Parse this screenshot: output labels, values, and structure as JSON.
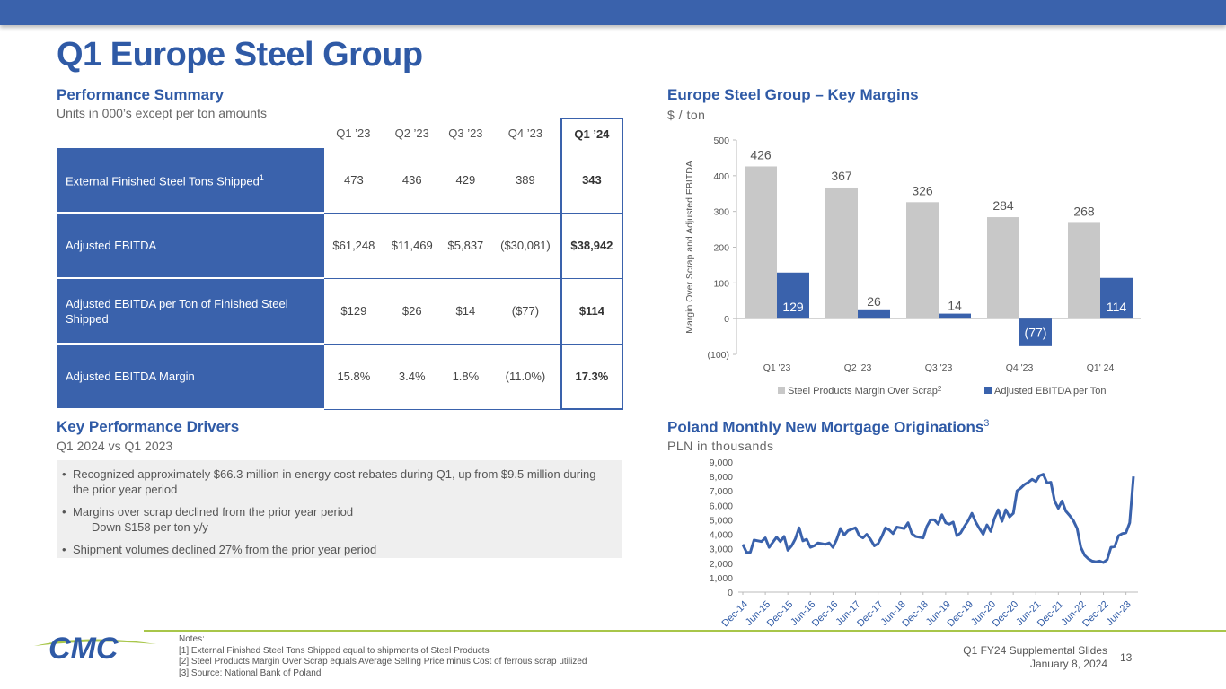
{
  "page": {
    "title": "Q1 Europe Steel Group",
    "page_number": "13",
    "footer_line1": "Q1 FY24 Supplemental Slides",
    "footer_line2": "January 8, 2024",
    "logo_text": "CMC"
  },
  "performance": {
    "heading": "Performance Summary",
    "subheading": "Units in 000’s except per ton amounts",
    "columns": [
      "Q1 ’23",
      "Q2 ’23",
      "Q3 ’23",
      "Q4 ’23",
      "Q1 ’24"
    ],
    "rows": [
      {
        "label": "External Finished Steel Tons Shipped",
        "sup": "1",
        "values": [
          "473",
          "436",
          "429",
          "389",
          "343"
        ]
      },
      {
        "label": "Adjusted EBITDA",
        "sup": "",
        "values": [
          "$61,248",
          "$11,469",
          "$5,837",
          "($30,081)",
          "$38,942"
        ]
      },
      {
        "label": "Adjusted EBITDA per Ton of Finished Steel Shipped",
        "sup": "",
        "values": [
          "$129",
          "$26",
          "$14",
          "($77)",
          "$114"
        ]
      },
      {
        "label": "Adjusted EBITDA Margin",
        "sup": "",
        "values": [
          "15.8%",
          "3.4%",
          "1.8%",
          "(11.0%)",
          "17.3%"
        ]
      }
    ]
  },
  "drivers": {
    "heading": "Key Performance Drivers",
    "subheading": "Q1 2024 vs Q1 2023",
    "items": [
      "Recognized approximately $66.3 million in energy cost rebates during Q1, up from $9.5 million during the prior year period",
      "Margins over scrap declined from the prior year period",
      "Shipment volumes declined 27% from the prior year period"
    ],
    "subitem": "Down $158 per ton y/y",
    "bullet": "•",
    "dash": "–"
  },
  "margins_chart": {
    "heading": "Europe Steel Group – Key Margins",
    "subheading": "$ / ton"
  },
  "mortgage_chart": {
    "heading": "Poland Monthly New Mortgage Originations",
    "heading_sup": "3",
    "subheading": "PLN in thousands"
  },
  "notes": {
    "title": "Notes:",
    "lines": [
      "[1]  External Finished Steel Tons Shipped equal to shipments of Steel Products",
      "[2]  Steel Products Margin Over Scrap equals Average Selling Price minus Cost of ferrous scrap utilized",
      "[3]  Source: National Bank of Poland"
    ]
  },
  "colors": {
    "brand_blue": "#3a62ac",
    "gray_bar": "#c8c8c8",
    "accent_green": "#a8c64a"
  },
  "chart_data": [
    {
      "type": "bar",
      "title": "Europe Steel Group – Key Margins",
      "ylabel": "Margin Over Scrap and Adjusted EBITDA",
      "categories": [
        "Q1 '23",
        "Q2 '23",
        "Q3 '23",
        "Q4 '23",
        "Q1' 24"
      ],
      "ylim": [
        -100,
        500
      ],
      "yticks": [
        -100,
        0,
        100,
        200,
        300,
        400,
        500
      ],
      "ytick_labels": [
        "(100)",
        "0",
        "100",
        "200",
        "300",
        "400",
        "500"
      ],
      "series": [
        {
          "name": "Steel Products Margin Over Scrap",
          "name_sup": "2",
          "values": [
            426,
            367,
            326,
            284,
            268
          ],
          "labels": [
            "426",
            "367",
            "326",
            "284",
            "268"
          ]
        },
        {
          "name": "Adjusted EBITDA per Ton",
          "name_sup": "",
          "values": [
            129,
            26,
            14,
            -77,
            114
          ],
          "labels": [
            "129",
            "26",
            "14",
            "(77)",
            "114"
          ]
        }
      ]
    },
    {
      "type": "line",
      "title": "Poland Monthly New Mortgage Originations",
      "ylabel": "PLN in thousands",
      "ylim": [
        0,
        9000
      ],
      "yticks": [
        0,
        1000,
        2000,
        3000,
        4000,
        5000,
        6000,
        7000,
        8000,
        9000
      ],
      "ytick_labels": [
        "0",
        "1,000",
        "2,000",
        "3,000",
        "4,000",
        "5,000",
        "6,000",
        "7,000",
        "8,000",
        "9,000"
      ],
      "x_labels": [
        "Dec-14",
        "Jun-15",
        "Dec-15",
        "Jun-16",
        "Dec-16",
        "Jun-17",
        "Dec-17",
        "Jun-18",
        "Dec-18",
        "Jun-19",
        "Dec-19",
        "Jun-20",
        "Dec-20",
        "Jun-21",
        "Dec-21",
        "Jun-22",
        "Dec-22",
        "Jun-23"
      ],
      "start": "Dec-14",
      "values": [
        3300,
        2750,
        2750,
        3600,
        3550,
        3500,
        3750,
        3100,
        3450,
        3800,
        3500,
        3850,
        2900,
        3200,
        3700,
        4450,
        3550,
        3650,
        3100,
        3200,
        3400,
        3350,
        3300,
        3400,
        3100,
        3650,
        4400,
        3950,
        4250,
        4350,
        4450,
        3900,
        3750,
        4000,
        3650,
        3200,
        3350,
        3850,
        4450,
        4300,
        4050,
        4500,
        4450,
        4400,
        4800,
        4050,
        3850,
        3800,
        3750,
        4550,
        5000,
        5000,
        4700,
        5350,
        4800,
        4700,
        4850,
        3900,
        4100,
        4550,
        4950,
        5450,
        4850,
        4400,
        4000,
        4650,
        4200,
        5100,
        5700,
        4900,
        5700,
        5200,
        5450,
        7000,
        7200,
        7450,
        7600,
        7800,
        7650,
        8050,
        8150,
        7550,
        7600,
        6300,
        5800,
        6300,
        5600,
        5300,
        4950,
        4400,
        3100,
        2550,
        2300,
        2150,
        2100,
        2150,
        2050,
        2250,
        3100,
        3150,
        3900,
        4050,
        4100,
        4800,
        8000
      ]
    }
  ]
}
